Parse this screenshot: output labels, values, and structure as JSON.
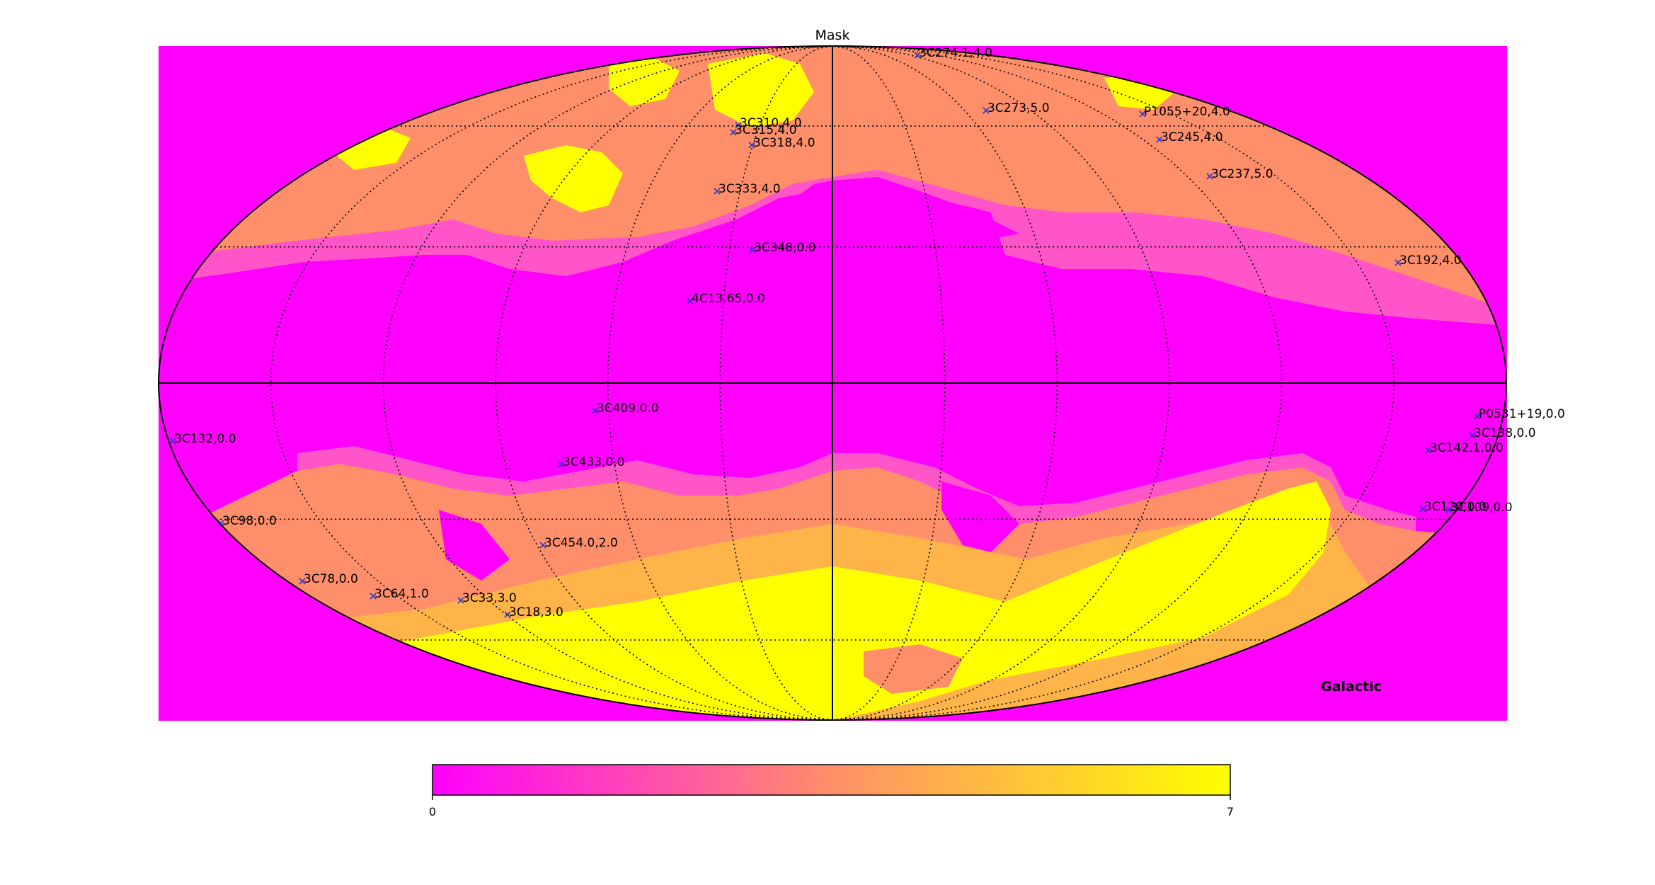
{
  "title": "Mask",
  "coord_label": "Galactic",
  "colors": {
    "background": "#ff00ff",
    "magenta": "#ff00ff",
    "pink": "#ff55c8",
    "salmon": "#ff8f6a",
    "orange": "#ffb44a",
    "yellow": "#ffff00",
    "grid": "#000000",
    "marker": "#2b39c8"
  },
  "colorbar": {
    "min_label": "0",
    "max_label": "7",
    "stops": [
      "#ff00ff",
      "#ff8f6a",
      "#ffff00"
    ]
  },
  "sources": [
    {
      "label": "3C274.1,4.0"
    },
    {
      "label": "3C273,5.0"
    },
    {
      "label": "P1055+20,4.0"
    },
    {
      "label": "3C310,4.0"
    },
    {
      "label": "3C315,4.0"
    },
    {
      "label": "3C318,4.0"
    },
    {
      "label": "3C245,4.0"
    },
    {
      "label": "3C237,5.0"
    },
    {
      "label": "3C333,4.0"
    },
    {
      "label": "3C348,0.0"
    },
    {
      "label": "3C192,4.0"
    },
    {
      "label": "4C13.65,0.0"
    },
    {
      "label": "3C409,0.0"
    },
    {
      "label": "P0531+19,0.0"
    },
    {
      "label": "3C138,0.0"
    },
    {
      "label": "3C132,0.0"
    },
    {
      "label": "3C142.1,0.0"
    },
    {
      "label": "3C433,0.0"
    },
    {
      "label": "3C120,0.0"
    },
    {
      "label": "3C109,0.0"
    },
    {
      "label": "3C98,0.0"
    },
    {
      "label": "3C454.0,2.0"
    },
    {
      "label": "3C78,0.0"
    },
    {
      "label": "3C64,1.0"
    },
    {
      "label": "3C33,3.0"
    },
    {
      "label": "3C18,3.0"
    }
  ]
}
